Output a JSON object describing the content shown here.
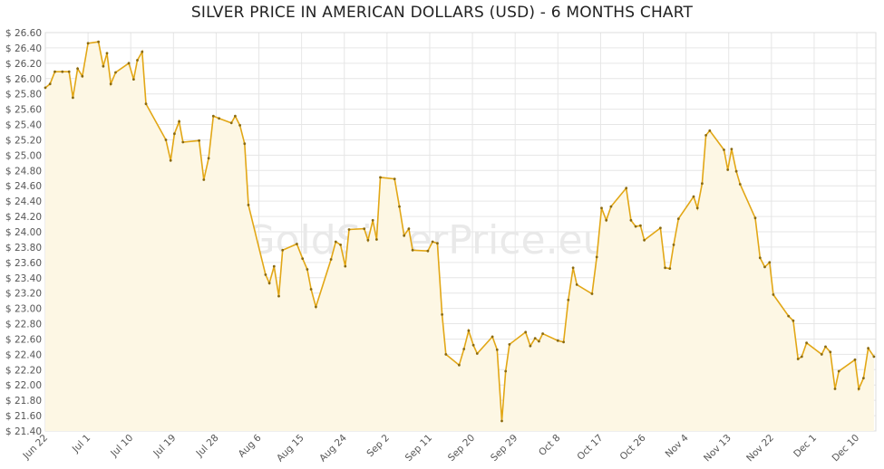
{
  "chart_data": {
    "type": "area",
    "title": "SILVER PRICE IN AMERICAN DOLLARS (USD) - 6 MONTHS CHART",
    "xlabel": "",
    "ylabel": "",
    "watermark": "GoldSilverPrice.eu",
    "ylim": [
      21.4,
      26.6
    ],
    "y_ticks": [
      "$ 21.40",
      "$ 21.60",
      "$ 21.80",
      "$ 22.00",
      "$ 22.20",
      "$ 22.40",
      "$ 22.60",
      "$ 22.80",
      "$ 23.00",
      "$ 23.20",
      "$ 23.40",
      "$ 23.60",
      "$ 23.80",
      "$ 24.00",
      "$ 24.20",
      "$ 24.40",
      "$ 24.60",
      "$ 24.80",
      "$ 25.00",
      "$ 25.20",
      "$ 25.40",
      "$ 25.60",
      "$ 25.80",
      "$ 26.00",
      "$ 26.20",
      "$ 26.40",
      "$ 26.60"
    ],
    "x_ticks": [
      {
        "label": "Jun 22",
        "day": 0
      },
      {
        "label": "Jul 1",
        "day": 9
      },
      {
        "label": "Jul 10",
        "day": 18
      },
      {
        "label": "Jul 19",
        "day": 27
      },
      {
        "label": "Jul 28",
        "day": 36
      },
      {
        "label": "Aug 6",
        "day": 45
      },
      {
        "label": "Aug 15",
        "day": 54
      },
      {
        "label": "Aug 24",
        "day": 63
      },
      {
        "label": "Sep 2",
        "day": 72
      },
      {
        "label": "Sep 11",
        "day": 81
      },
      {
        "label": "Sep 20",
        "day": 90
      },
      {
        "label": "Sep 29",
        "day": 99
      },
      {
        "label": "Oct 8",
        "day": 108
      },
      {
        "label": "Oct 17",
        "day": 117
      },
      {
        "label": "Oct 26",
        "day": 126
      },
      {
        "label": "Nov 4",
        "day": 135
      },
      {
        "label": "Nov 13",
        "day": 144
      },
      {
        "label": "Nov 22",
        "day": 153
      },
      {
        "label": "Dec 1",
        "day": 162
      },
      {
        "label": "Dec 10",
        "day": 171
      }
    ],
    "x_range": [
      0,
      175
    ],
    "series": [
      {
        "name": "",
        "color": "#e2a716",
        "fill": "#fdf7e4",
        "points": [
          [
            0,
            25.88
          ],
          [
            1,
            25.93
          ],
          [
            2,
            26.09
          ],
          [
            3.6,
            26.09
          ],
          [
            5,
            26.09
          ],
          [
            5.8,
            25.75
          ],
          [
            6.8,
            26.13
          ],
          [
            7.8,
            26.03
          ],
          [
            9,
            26.46
          ],
          [
            11.2,
            26.48
          ],
          [
            12.2,
            26.16
          ],
          [
            13,
            26.33
          ],
          [
            13.8,
            25.93
          ],
          [
            14.8,
            26.08
          ],
          [
            17.6,
            26.2
          ],
          [
            18.6,
            25.99
          ],
          [
            19.4,
            26.24
          ],
          [
            20.4,
            26.35
          ],
          [
            21.2,
            25.67
          ],
          [
            25.4,
            25.2
          ],
          [
            26.4,
            24.93
          ],
          [
            27.2,
            25.28
          ],
          [
            28.2,
            25.44
          ],
          [
            29,
            25.17
          ],
          [
            32.4,
            25.19
          ],
          [
            33.4,
            24.68
          ],
          [
            34.4,
            24.96
          ],
          [
            35.4,
            25.51
          ],
          [
            36.6,
            25.48
          ],
          [
            39.2,
            25.42
          ],
          [
            40,
            25.51
          ],
          [
            41,
            25.39
          ],
          [
            42,
            25.15
          ],
          [
            42.8,
            24.35
          ],
          [
            46.4,
            23.44
          ],
          [
            47.2,
            23.33
          ],
          [
            48.2,
            23.55
          ],
          [
            49.2,
            23.16
          ],
          [
            50,
            23.76
          ],
          [
            53,
            23.84
          ],
          [
            54.2,
            23.65
          ],
          [
            55.2,
            23.51
          ],
          [
            56,
            23.25
          ],
          [
            57,
            23.02
          ],
          [
            60.2,
            23.64
          ],
          [
            61.2,
            23.87
          ],
          [
            62.2,
            23.83
          ],
          [
            63.2,
            23.55
          ],
          [
            64,
            24.03
          ],
          [
            67.2,
            24.04
          ],
          [
            68,
            23.89
          ],
          [
            69,
            24.15
          ],
          [
            69.8,
            23.9
          ],
          [
            70.6,
            24.71
          ],
          [
            73.6,
            24.69
          ],
          [
            74.6,
            24.33
          ],
          [
            75.6,
            23.95
          ],
          [
            76.6,
            24.04
          ],
          [
            77.4,
            23.76
          ],
          [
            80.6,
            23.75
          ],
          [
            81.6,
            23.87
          ],
          [
            82.6,
            23.85
          ],
          [
            83.6,
            22.92
          ],
          [
            84.4,
            22.4
          ],
          [
            87.2,
            22.26
          ],
          [
            88.2,
            22.47
          ],
          [
            89.2,
            22.71
          ],
          [
            90.2,
            22.52
          ],
          [
            91,
            22.41
          ],
          [
            94.2,
            22.63
          ],
          [
            95.2,
            22.46
          ],
          [
            96.2,
            21.53
          ],
          [
            97,
            22.18
          ],
          [
            97.8,
            22.53
          ],
          [
            101.2,
            22.69
          ],
          [
            102.2,
            22.51
          ],
          [
            103.2,
            22.61
          ],
          [
            104,
            22.57
          ],
          [
            104.8,
            22.67
          ],
          [
            108,
            22.58
          ],
          [
            109.2,
            22.56
          ],
          [
            110.2,
            23.11
          ],
          [
            111.2,
            23.53
          ],
          [
            112,
            23.31
          ],
          [
            115.2,
            23.19
          ],
          [
            116.2,
            23.67
          ],
          [
            117.2,
            24.31
          ],
          [
            118.2,
            24.15
          ],
          [
            119.2,
            24.33
          ],
          [
            122.4,
            24.57
          ],
          [
            123.4,
            24.15
          ],
          [
            124.4,
            24.07
          ],
          [
            125.4,
            24.08
          ],
          [
            126.2,
            23.89
          ],
          [
            129.6,
            24.05
          ],
          [
            130.6,
            23.53
          ],
          [
            131.6,
            23.52
          ],
          [
            132.4,
            23.83
          ],
          [
            133.4,
            24.17
          ],
          [
            136.6,
            24.46
          ],
          [
            137.4,
            24.31
          ],
          [
            138.4,
            24.63
          ],
          [
            139.2,
            25.26
          ],
          [
            140,
            25.32
          ],
          [
            143,
            25.07
          ],
          [
            143.8,
            24.81
          ],
          [
            144.6,
            25.08
          ],
          [
            145.6,
            24.79
          ],
          [
            146.4,
            24.62
          ],
          [
            149.6,
            24.18
          ],
          [
            150.6,
            23.66
          ],
          [
            151.6,
            23.54
          ],
          [
            152.6,
            23.6
          ],
          [
            153.4,
            23.18
          ],
          [
            156.6,
            22.9
          ],
          [
            157.6,
            22.84
          ],
          [
            158.6,
            22.34
          ],
          [
            159.4,
            22.37
          ],
          [
            160.4,
            22.55
          ],
          [
            163.6,
            22.4
          ],
          [
            164.4,
            22.5
          ],
          [
            165.4,
            22.43
          ],
          [
            166.4,
            21.95
          ],
          [
            167.2,
            22.18
          ],
          [
            170.6,
            22.33
          ],
          [
            171.4,
            21.95
          ],
          [
            172.4,
            22.09
          ],
          [
            173.4,
            22.48
          ],
          [
            174.6,
            22.37
          ]
        ]
      }
    ]
  }
}
